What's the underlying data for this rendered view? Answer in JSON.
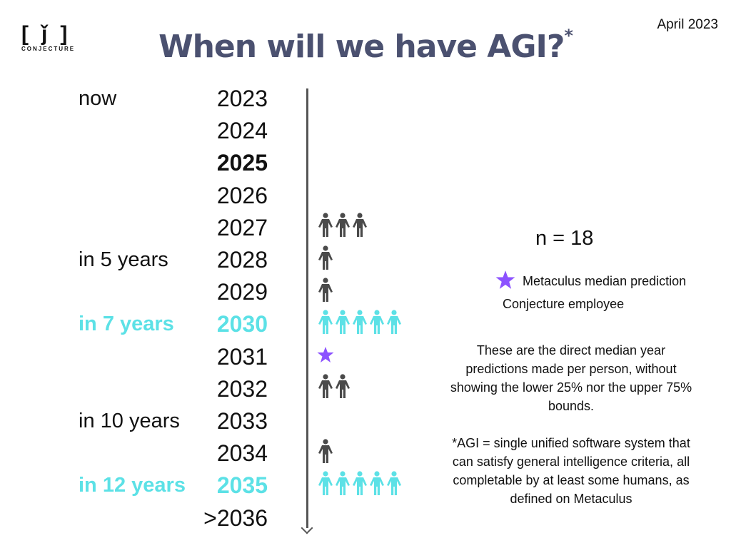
{
  "header": {
    "title": "When will we have AGI?",
    "title_mark": "*",
    "date": "April 2023",
    "logo": "CONJECTURE"
  },
  "colors": {
    "title": "#4b5170",
    "highlight": "#5ce1e6",
    "person": "#4a4a4a",
    "star": "#8c52ff"
  },
  "chart_data": {
    "type": "pictograph",
    "title": "When will we have AGI?",
    "rows": [
      {
        "year": "2023",
        "label": "now",
        "count": 0
      },
      {
        "year": "2024",
        "label": "",
        "count": 0
      },
      {
        "year": "2025",
        "label": "",
        "count": 0,
        "bold": true
      },
      {
        "year": "2026",
        "label": "",
        "count": 0
      },
      {
        "year": "2027",
        "label": "",
        "count": 3
      },
      {
        "year": "2028",
        "label": "in 5 years",
        "count": 1
      },
      {
        "year": "2029",
        "label": "",
        "count": 1
      },
      {
        "year": "2030",
        "label": "in 7 years",
        "count": 5,
        "highlight": true
      },
      {
        "year": "2031",
        "label": "",
        "count": 0,
        "metaculus": true
      },
      {
        "year": "2032",
        "label": "",
        "count": 2
      },
      {
        "year": "2033",
        "label": "in 10 years",
        "count": 0
      },
      {
        "year": "2034",
        "label": "",
        "count": 1
      },
      {
        "year": "2035",
        "label": "in 12 years",
        "count": 5,
        "highlight": true
      },
      {
        "year": ">2036",
        "label": "",
        "count": 0
      }
    ]
  },
  "legend": {
    "n": "n = 18",
    "metaculus": "Metaculus median prediction",
    "employee": "Conjecture employee"
  },
  "notes": {
    "bounds": "These are the direct median year predictions made per person, without showing the lower 25% nor the upper 75% bounds.",
    "definition": "*AGI = single unified software system that can satisfy general intelligence criteria, all completable by at least some humans, as defined on Metaculus"
  }
}
